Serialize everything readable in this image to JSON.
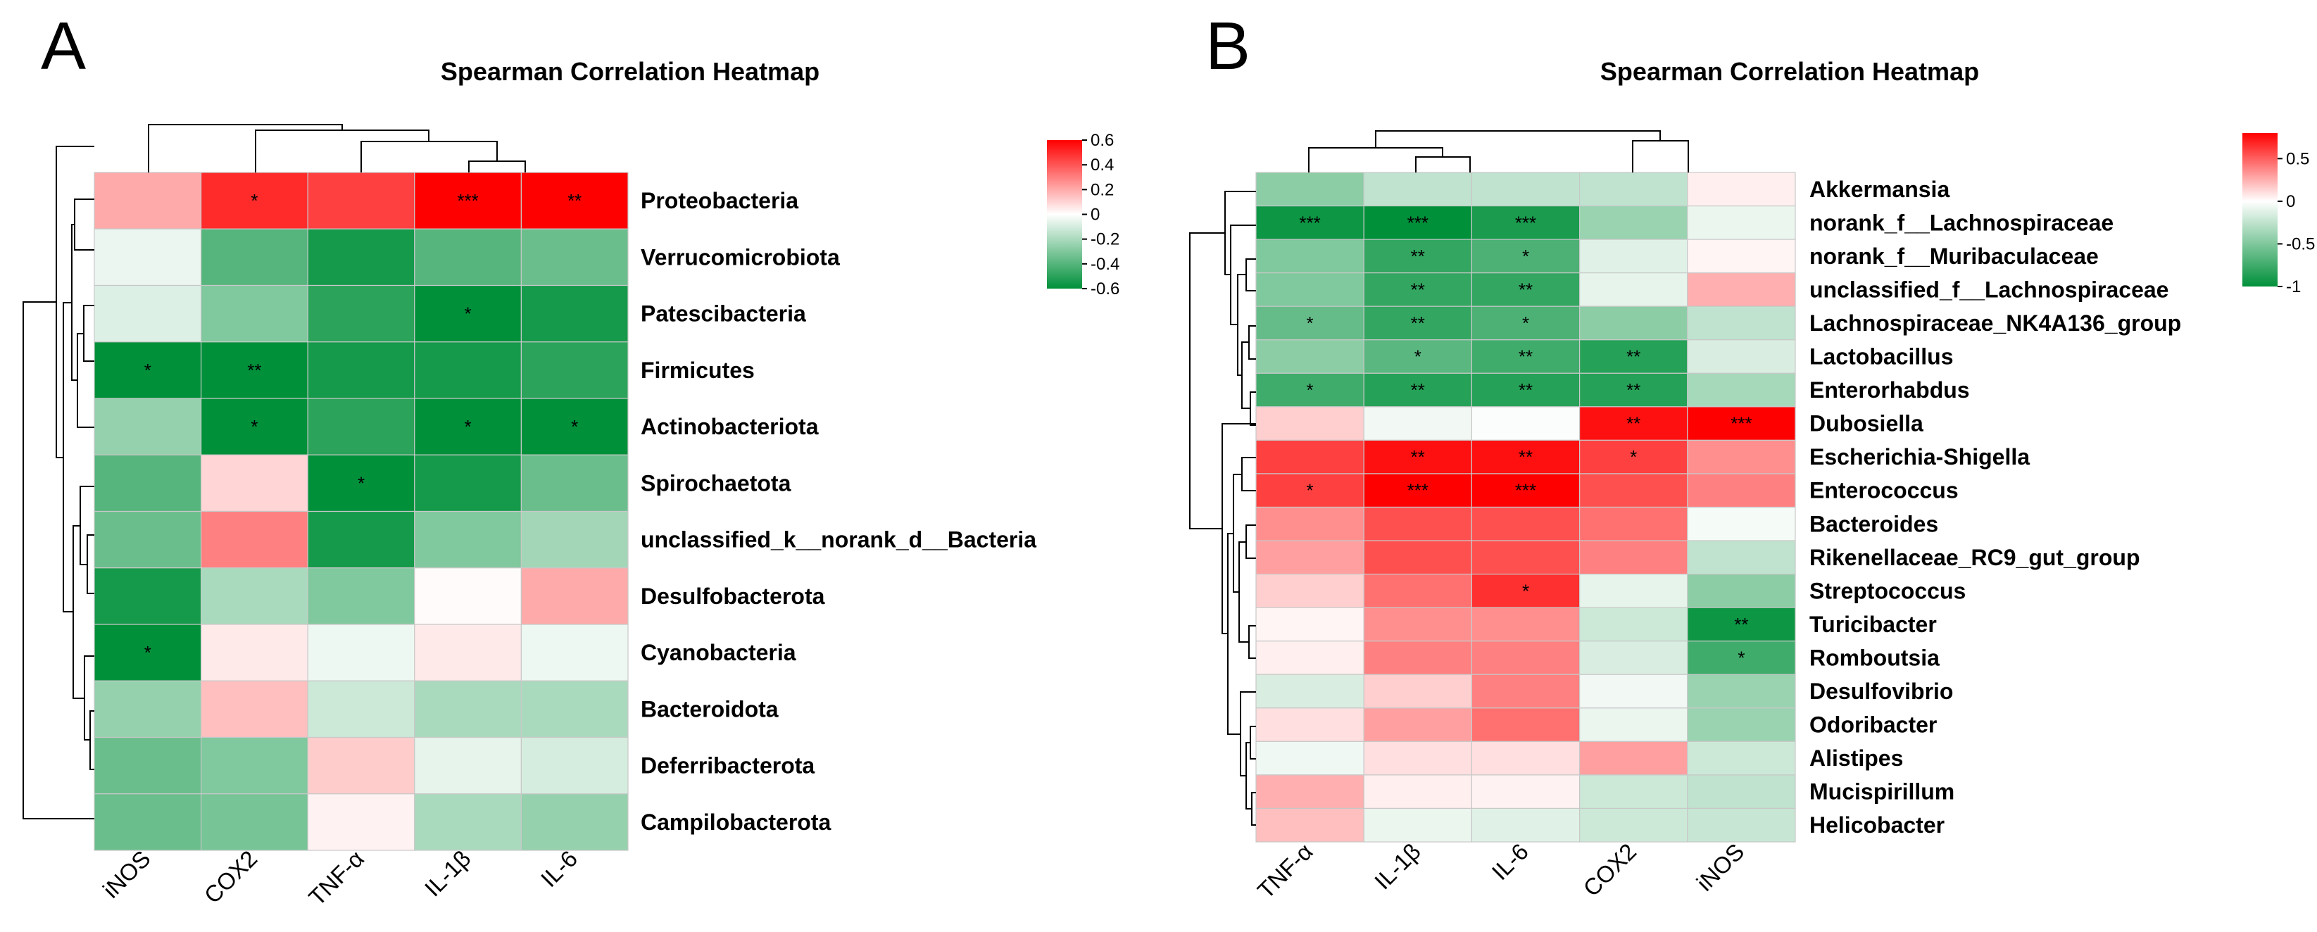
{
  "colors": {
    "neg": "#00903a",
    "mid": "#ffffff",
    "pos": "#ff0000"
  },
  "chart_data": [
    {
      "panel": "A",
      "type": "heatmap",
      "title": "Spearman Correlation Heatmap",
      "columns": [
        "iNOS",
        "COX2",
        "TNF-α",
        "IL-1β",
        "IL-6"
      ],
      "rows": [
        "Proteobacteria",
        "Verrucomicrobiota",
        "Patescibacteria",
        "Firmicutes",
        "Actinobacteriota",
        "Spirochaetota",
        "unclassified_k__norank_d__Bacteria",
        "Desulfobacterota",
        "Cyanobacteria",
        "Bacteroidota",
        "Deferribacterota",
        "Campilobacterota"
      ],
      "values": [
        [
          0.2,
          0.5,
          0.45,
          0.62,
          0.62
        ],
        [
          -0.05,
          -0.4,
          -0.55,
          -0.4,
          -0.35
        ],
        [
          -0.08,
          -0.3,
          -0.5,
          -0.6,
          -0.55
        ],
        [
          -0.6,
          -0.62,
          -0.55,
          -0.55,
          -0.5
        ],
        [
          -0.25,
          -0.6,
          -0.5,
          -0.62,
          -0.62
        ],
        [
          -0.4,
          0.1,
          -0.6,
          -0.55,
          -0.35
        ],
        [
          -0.35,
          0.3,
          -0.55,
          -0.3,
          -0.22
        ],
        [
          -0.55,
          -0.2,
          -0.3,
          0.01,
          0.2
        ],
        [
          -0.6,
          0.05,
          -0.04,
          0.05,
          -0.04
        ],
        [
          -0.25,
          0.15,
          -0.12,
          -0.2,
          -0.2
        ],
        [
          -0.35,
          -0.3,
          0.12,
          -0.06,
          -0.1
        ],
        [
          -0.35,
          -0.32,
          0.03,
          -0.2,
          -0.25
        ]
      ],
      "stars": [
        [
          "",
          "*",
          "",
          "***",
          "**"
        ],
        [
          "",
          "",
          "",
          "",
          ""
        ],
        [
          "",
          "",
          "",
          "*",
          ""
        ],
        [
          "*",
          "**",
          "",
          "",
          ""
        ],
        [
          "",
          "*",
          "",
          "*",
          "*"
        ],
        [
          "",
          "",
          "*",
          "",
          ""
        ],
        [
          "",
          "",
          "",
          "",
          ""
        ],
        [
          "",
          "",
          "",
          "",
          ""
        ],
        [
          "*",
          "",
          "",
          "",
          ""
        ],
        [
          "",
          "",
          "",
          "",
          ""
        ],
        [
          "",
          "",
          "",
          "",
          ""
        ],
        [
          "",
          "",
          "",
          "",
          ""
        ]
      ],
      "colorbar": {
        "range": [
          -0.6,
          0.6
        ],
        "ticks": [
          "0.6",
          "0.4",
          "0.2",
          "0",
          "-0.2",
          "-0.4",
          "-0.6"
        ]
      }
    },
    {
      "panel": "B",
      "type": "heatmap",
      "title": "Spearman Correlation Heatmap",
      "columns": [
        "TNF-α",
        "IL-1β",
        "IL-6",
        "COX2",
        "iNOS"
      ],
      "rows": [
        "Akkermansia",
        "norank_f__Lachnospiraceae",
        "norank_f__Muribaculaceae",
        "unclassified_f__Lachnospiraceae",
        "Lachnospiraceae_NK4A136_group",
        "Lactobacillus",
        "Enterorhabdus",
        "Dubosiella",
        "Escherichia-Shigella",
        "Enterococcus",
        "Bacteroides",
        "Rikenellaceae_RC9_gut_group",
        "Streptococcus",
        "Turicibacter",
        "Romboutsia",
        "Desulfovibrio",
        "Odoribacter",
        "Alistipes",
        "Mucispirillum",
        "Helicobacter"
      ],
      "values": [
        [
          -0.45,
          -0.25,
          -0.25,
          -0.25,
          0.05
        ],
        [
          -0.95,
          -1.0,
          -0.9,
          -0.4,
          -0.08
        ],
        [
          -0.5,
          -0.8,
          -0.7,
          -0.12,
          0.03
        ],
        [
          -0.5,
          -0.8,
          -0.8,
          -0.1,
          0.25
        ],
        [
          -0.6,
          -0.8,
          -0.7,
          -0.45,
          -0.25
        ],
        [
          -0.45,
          -0.65,
          -0.75,
          -0.85,
          -0.15
        ],
        [
          -0.75,
          -0.85,
          -0.85,
          -0.85,
          -0.35
        ],
        [
          0.15,
          -0.05,
          -0.02,
          0.75,
          0.9
        ],
        [
          0.6,
          0.75,
          0.75,
          0.6,
          0.35
        ],
        [
          0.6,
          0.9,
          0.9,
          0.55,
          0.4
        ],
        [
          0.35,
          0.55,
          0.55,
          0.45,
          -0.04
        ],
        [
          0.3,
          0.55,
          0.55,
          0.4,
          -0.25
        ],
        [
          0.15,
          0.45,
          0.65,
          -0.1,
          -0.45
        ],
        [
          0.03,
          0.35,
          0.35,
          -0.2,
          -0.95
        ],
        [
          0.05,
          0.4,
          0.4,
          -0.15,
          -0.75
        ],
        [
          -0.15,
          0.15,
          0.4,
          -0.05,
          -0.4
        ],
        [
          0.1,
          0.3,
          0.45,
          -0.08,
          -0.4
        ],
        [
          -0.06,
          0.1,
          0.1,
          0.3,
          -0.2
        ],
        [
          0.25,
          0.05,
          0.04,
          -0.2,
          -0.25
        ],
        [
          0.2,
          -0.08,
          -0.12,
          -0.2,
          -0.22
        ]
      ],
      "stars": [
        [
          "",
          "",
          "",
          "",
          ""
        ],
        [
          "***",
          "***",
          "***",
          "",
          ""
        ],
        [
          "",
          "**",
          "*",
          "",
          ""
        ],
        [
          "",
          "**",
          "**",
          "",
          ""
        ],
        [
          "*",
          "**",
          "*",
          "",
          ""
        ],
        [
          "",
          "*",
          "**",
          "**",
          ""
        ],
        [
          "*",
          "**",
          "**",
          "**",
          ""
        ],
        [
          "",
          "",
          "",
          "**",
          "***"
        ],
        [
          "",
          "**",
          "**",
          "*",
          ""
        ],
        [
          "*",
          "***",
          "***",
          "",
          ""
        ],
        [
          "",
          "",
          "",
          "",
          ""
        ],
        [
          "",
          "",
          "",
          "",
          ""
        ],
        [
          "",
          "",
          "*",
          "",
          ""
        ],
        [
          "",
          "",
          "",
          "",
          "**"
        ],
        [
          "",
          "",
          "",
          "",
          "*"
        ],
        [
          "",
          "",
          "",
          "",
          ""
        ],
        [
          "",
          "",
          "",
          "",
          ""
        ],
        [
          "",
          "",
          "",
          "",
          ""
        ],
        [
          "",
          "",
          "",
          "",
          ""
        ],
        [
          "",
          "",
          "",
          "",
          ""
        ]
      ],
      "colorbar": {
        "range": [
          -1,
          0.8
        ],
        "ticks": [
          "0.5",
          "0",
          "-0.5",
          "-1"
        ]
      }
    }
  ]
}
